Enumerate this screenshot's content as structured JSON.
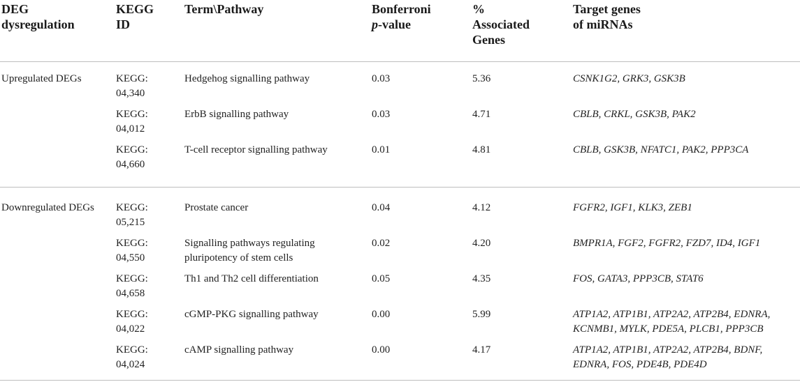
{
  "headers": {
    "col1": [
      "DEG",
      "dysregulation"
    ],
    "col2": [
      "KEGG",
      "ID"
    ],
    "col3": [
      "Term\\Pathway"
    ],
    "col4_line1": "Bonferroni",
    "col4_line2_italic": "p",
    "col4_line2_rest": "-value",
    "col5": [
      "%",
      "Associated",
      "Genes"
    ],
    "col6": [
      "Target genes",
      "of miRNAs"
    ]
  },
  "groups": [
    {
      "label": "Upregulated DEGs",
      "rows": [
        {
          "kegg": [
            "KEGG:",
            "04,340"
          ],
          "term": [
            "Hedgehog signalling pathway"
          ],
          "p": "0.03",
          "pct": "5.36",
          "genes": [
            "CSNK1G2, GRK3, GSK3B"
          ]
        },
        {
          "kegg": [
            "KEGG:",
            "04,012"
          ],
          "term": [
            "ErbB signalling pathway"
          ],
          "p": "0.03",
          "pct": "4.71",
          "genes": [
            "CBLB, CRKL, GSK3B, PAK2"
          ]
        },
        {
          "kegg": [
            "KEGG:",
            "04,660"
          ],
          "term": [
            "T-cell receptor signalling pathway"
          ],
          "p": "0.01",
          "pct": "4.81",
          "genes": [
            "CBLB, GSK3B, NFATC1, PAK2, PPP3CA"
          ]
        }
      ]
    },
    {
      "label": "Downregulated DEGs",
      "rows": [
        {
          "kegg": [
            "KEGG:",
            "05,215"
          ],
          "term": [
            "Prostate cancer"
          ],
          "p": "0.04",
          "pct": "4.12",
          "genes": [
            "FGFR2, IGF1, KLK3, ZEB1"
          ]
        },
        {
          "kegg": [
            "KEGG:",
            "04,550"
          ],
          "term": [
            "Signalling pathways regulating",
            "pluripotency of stem cells"
          ],
          "p": "0.02",
          "pct": "4.20",
          "genes": [
            "BMPR1A, FGF2, FGFR2, FZD7, ID4, IGF1"
          ]
        },
        {
          "kegg": [
            "KEGG:",
            "04,658"
          ],
          "term": [
            "Th1 and Th2 cell differentiation"
          ],
          "p": "0.05",
          "pct": "4.35",
          "genes": [
            "FOS, GATA3, PPP3CB, STAT6"
          ]
        },
        {
          "kegg": [
            "KEGG:",
            "04,022"
          ],
          "term": [
            "cGMP-PKG signalling pathway"
          ],
          "p": "0.00",
          "pct": "5.99",
          "genes": [
            "ATP1A2, ATP1B1, ATP2A2, ATP2B4, EDNRA,",
            "KCNMB1, MYLK, PDE5A, PLCB1, PPP3CB"
          ]
        },
        {
          "kegg": [
            "KEGG:",
            "04,024"
          ],
          "term": [
            "cAMP signalling pathway"
          ],
          "p": "0.00",
          "pct": "4.17",
          "genes": [
            "ATP1A2, ATP1B1, ATP2A2, ATP2B4, BDNF,",
            "EDNRA, FOS, PDE4B, PDE4D"
          ]
        }
      ]
    }
  ]
}
